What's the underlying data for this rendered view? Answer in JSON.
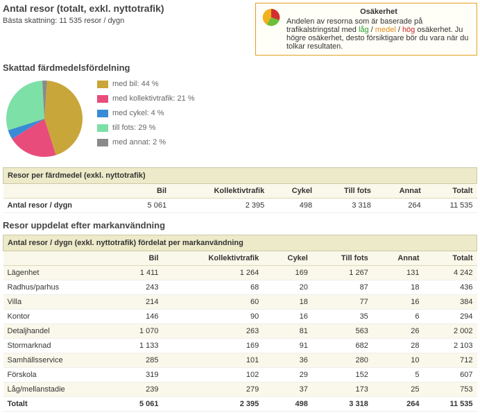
{
  "header": {
    "title": "Antal resor (totalt, exkl. nyttotrafik)",
    "estimate_line": "Bästa skattning: 11 535 resor / dygn"
  },
  "uncertainty_box": {
    "title": "Osäkerhet",
    "pre": "Andelen av resorna som är baserade på trafikalstringstal med ",
    "lag": "låg",
    "sep1": " / ",
    "medel": "medel",
    "sep2": " / ",
    "hog": "hög",
    "post": " osäkerhet. Ju högre osäkerhet, desto försiktigare bör du vara när du tolkar resultaten.",
    "icon_colors": {
      "low": "#6bbf3a",
      "med": "#f0b020",
      "high": "#d23030"
    }
  },
  "mode_chart": {
    "title": "Skattad färdmedelsfördelning",
    "type": "pie",
    "slices": [
      {
        "label": "med bil: 44 %",
        "pct": 44,
        "color": "#c9a63a"
      },
      {
        "label": "med kollektivtrafik: 21 %",
        "pct": 21,
        "color": "#e84c7a"
      },
      {
        "label": "med cykel: 4 %",
        "pct": 4,
        "color": "#3a8bd6"
      },
      {
        "label": "till fots: 29 %",
        "pct": 29,
        "color": "#7de0a6"
      },
      {
        "label": "med annat: 2 %",
        "pct": 2,
        "color": "#8a8a8a"
      }
    ]
  },
  "mode_table": {
    "title": "Resor per färdmedel (exkl. nyttotrafik)",
    "columns": [
      "",
      "Bil",
      "Kollektivtrafik",
      "Cykel",
      "Till fots",
      "Annat",
      "Totalt"
    ],
    "rows": [
      {
        "label": "Antal resor / dygn",
        "values": [
          "5 061",
          "2 395",
          "498",
          "3 318",
          "264",
          "11 535"
        ]
      }
    ]
  },
  "landuse": {
    "section_title": "Resor uppdelat efter markanvändning",
    "table_title": "Antal resor / dygn (exkl. nyttotrafik) fördelat per markanvändning",
    "columns": [
      "",
      "Bil",
      "Kollektivtrafik",
      "Cykel",
      "Till fots",
      "Annat",
      "Totalt"
    ],
    "rows": [
      {
        "label": "Lägenhet",
        "values": [
          "1 411",
          "1 264",
          "169",
          "1 267",
          "131",
          "4 242"
        ]
      },
      {
        "label": "Radhus/parhus",
        "values": [
          "243",
          "68",
          "20",
          "87",
          "18",
          "436"
        ]
      },
      {
        "label": "Villa",
        "values": [
          "214",
          "60",
          "18",
          "77",
          "16",
          "384"
        ]
      },
      {
        "label": "Kontor",
        "values": [
          "146",
          "90",
          "16",
          "35",
          "6",
          "294"
        ]
      },
      {
        "label": "Detaljhandel",
        "values": [
          "1 070",
          "263",
          "81",
          "563",
          "26",
          "2 002"
        ]
      },
      {
        "label": "Stormarknad",
        "values": [
          "1 133",
          "169",
          "91",
          "682",
          "28",
          "2 103"
        ]
      },
      {
        "label": "Samhällsservice",
        "values": [
          "285",
          "101",
          "36",
          "280",
          "10",
          "712"
        ]
      },
      {
        "label": "Förskola",
        "values": [
          "319",
          "102",
          "29",
          "152",
          "5",
          "607"
        ]
      },
      {
        "label": "Låg/mellanstadie",
        "values": [
          "239",
          "279",
          "37",
          "173",
          "25",
          "753"
        ]
      }
    ],
    "total": {
      "label": "Totalt",
      "values": [
        "5 061",
        "2 395",
        "498",
        "3 318",
        "264",
        "11 535"
      ]
    }
  }
}
